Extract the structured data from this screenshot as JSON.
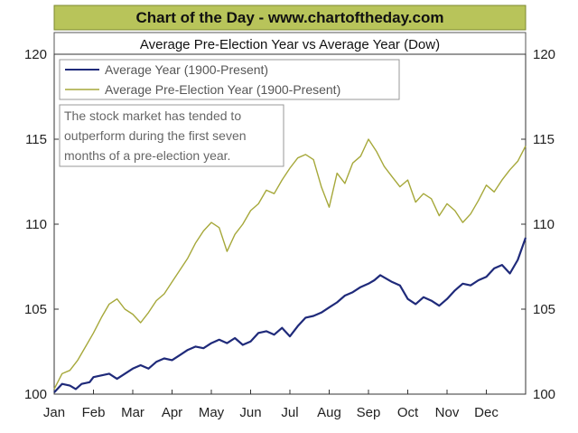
{
  "header": {
    "banner": "Chart of the Day - www.chartoftheday.com",
    "banner_color": "#b8c45a"
  },
  "chart_data": {
    "type": "line",
    "title": "Average Pre-Election Year vs Average Year (Dow)",
    "xlabel": "",
    "ylabel": "",
    "ylim": [
      100,
      120
    ],
    "yticks": [
      100,
      105,
      110,
      115,
      120
    ],
    "xlim": [
      0,
      12
    ],
    "months": [
      "Jan",
      "Feb",
      "Mar",
      "Apr",
      "May",
      "Jun",
      "Jul",
      "Aug",
      "Sep",
      "Oct",
      "Nov",
      "Dec"
    ],
    "grid": false,
    "legend_position": "top-left",
    "series": [
      {
        "name": "Average Year (1900-Present)",
        "color": "#1f2a7a",
        "x": [
          0,
          0.2,
          0.4,
          0.55,
          0.7,
          0.9,
          1.0,
          1.2,
          1.4,
          1.6,
          1.8,
          2.0,
          2.2,
          2.4,
          2.6,
          2.8,
          3.0,
          3.2,
          3.4,
          3.6,
          3.8,
          4.0,
          4.2,
          4.4,
          4.6,
          4.8,
          5.0,
          5.2,
          5.4,
          5.6,
          5.8,
          6.0,
          6.2,
          6.4,
          6.6,
          6.8,
          7.0,
          7.2,
          7.4,
          7.6,
          7.8,
          8.0,
          8.15,
          8.3,
          8.45,
          8.6,
          8.8,
          9.0,
          9.2,
          9.4,
          9.6,
          9.8,
          10.0,
          10.2,
          10.4,
          10.6,
          10.8,
          11.0,
          11.2,
          11.4,
          11.6,
          11.8,
          12.0
        ],
        "values": [
          100.1,
          100.6,
          100.5,
          100.3,
          100.6,
          100.7,
          101.0,
          101.1,
          101.2,
          100.9,
          101.2,
          101.5,
          101.7,
          101.5,
          101.9,
          102.1,
          102.0,
          102.3,
          102.6,
          102.8,
          102.7,
          103.0,
          103.2,
          103.0,
          103.3,
          102.9,
          103.1,
          103.6,
          103.7,
          103.5,
          103.9,
          103.4,
          104.0,
          104.5,
          104.6,
          104.8,
          105.1,
          105.4,
          105.8,
          106.0,
          106.3,
          106.5,
          106.7,
          107.0,
          106.8,
          106.6,
          106.4,
          105.6,
          105.3,
          105.7,
          105.5,
          105.2,
          105.6,
          106.1,
          106.5,
          106.4,
          106.7,
          106.9,
          107.4,
          107.6,
          107.1,
          107.9,
          109.2
        ]
      },
      {
        "name": "Average Pre-Election Year (1900-Present)",
        "color": "#a6a83a",
        "x": [
          0,
          0.2,
          0.4,
          0.6,
          0.8,
          1.0,
          1.2,
          1.4,
          1.6,
          1.8,
          2.0,
          2.2,
          2.4,
          2.6,
          2.8,
          3.0,
          3.2,
          3.4,
          3.6,
          3.8,
          4.0,
          4.2,
          4.4,
          4.6,
          4.8,
          5.0,
          5.2,
          5.4,
          5.6,
          5.8,
          6.0,
          6.2,
          6.4,
          6.6,
          6.8,
          7.0,
          7.2,
          7.4,
          7.6,
          7.8,
          8.0,
          8.2,
          8.4,
          8.6,
          8.8,
          9.0,
          9.2,
          9.4,
          9.6,
          9.8,
          10.0,
          10.2,
          10.4,
          10.6,
          10.8,
          11.0,
          11.2,
          11.4,
          11.6,
          11.8,
          12.0
        ],
        "values": [
          100.3,
          101.2,
          101.4,
          102.0,
          102.8,
          103.6,
          104.5,
          105.3,
          105.6,
          105.0,
          104.7,
          104.2,
          104.8,
          105.5,
          105.9,
          106.6,
          107.3,
          108.0,
          108.9,
          109.6,
          110.1,
          109.8,
          108.4,
          109.4,
          110.0,
          110.8,
          111.2,
          112.0,
          111.8,
          112.6,
          113.3,
          113.9,
          114.1,
          113.8,
          112.2,
          111.0,
          113.0,
          112.4,
          113.6,
          114.0,
          115.0,
          114.3,
          113.4,
          112.8,
          112.2,
          112.6,
          111.3,
          111.8,
          111.5,
          110.5,
          111.2,
          110.8,
          110.1,
          110.6,
          111.4,
          112.3,
          111.9,
          112.6,
          113.2,
          113.7,
          114.6
        ]
      }
    ],
    "annotation": [
      "The stock market has tended to",
      "outperform during the first seven",
      "months of a pre-election year."
    ]
  }
}
